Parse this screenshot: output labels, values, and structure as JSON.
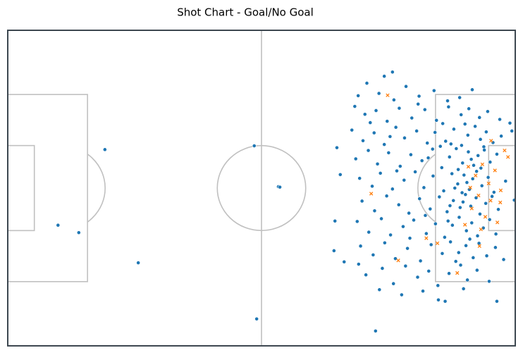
{
  "chart_data": {
    "type": "scatter",
    "title": "Shot Chart - Goal/No Goal",
    "xlim": [
      0,
      105
    ],
    "ylim": [
      68,
      0
    ],
    "series": [
      {
        "color": "#1f77b4",
        "marker": "circle",
        "x": [
          20.1,
          10.4,
          14.7,
          27.0,
          51.0,
          51.5,
          56.0,
          56.3,
          68.1,
          68.8,
          67.7,
          67.5,
          69.6,
          76.1,
          101.2,
          89.1,
          79.6,
          77.9,
          104.8,
          104.3,
          74.3,
          76.8,
          82.4,
          85.1,
          88.2,
          93.5,
          96.1,
          79.9,
          72.5,
          91.0,
          71.8,
          73.9,
          76.2,
          78.5,
          81.0,
          83.6,
          86.3,
          88.7,
          91.2,
          93.8,
          95.4,
          97.6,
          99.3,
          101.8,
          103.9,
          90.0,
          84.9,
          75.0,
          71.2,
          73.5,
          75.8,
          77.9,
          80.3,
          82.1,
          84.6,
          86.8,
          88.4,
          90.6,
          92.3,
          93.9,
          95.2,
          96.7,
          97.8,
          99.0,
          100.4,
          102.1,
          94.6,
          89.5,
          79.1,
          98.5,
          91.7,
          72.0,
          74.6,
          76.5,
          78.8,
          81.2,
          83.4,
          85.7,
          87.9,
          89.8,
          91.4,
          92.8,
          94.1,
          95.3,
          96.4,
          97.3,
          98.6,
          99.8,
          101.2,
          93.2,
          95.9,
          97.9,
          87.0,
          72.8,
          75.4,
          77.1,
          79.6,
          82.0,
          84.3,
          86.1,
          88.0,
          90.2,
          91.9,
          93.1,
          94.4,
          95.5,
          96.2,
          97.0,
          98.1,
          99.4,
          100.6,
          94.0,
          95.0,
          92.5,
          80.5,
          103.0,
          73.3,
          75.9,
          78.4,
          80.9,
          83.0,
          85.2,
          87.4,
          89.3,
          90.9,
          92.2,
          93.6,
          94.7,
          95.8,
          96.9,
          97.7,
          98.9,
          100.2,
          101.5,
          94.2,
          91.5,
          86.4,
          72.3,
          74.7,
          77.3,
          79.2,
          81.8,
          84.0,
          86.6,
          88.5,
          90.4,
          92.0,
          93.4,
          94.9,
          96.0,
          97.2,
          98.4,
          99.7,
          101.0,
          95.6,
          83.2,
          91.1,
          73.0,
          75.6,
          78.0,
          80.2,
          82.7,
          85.4,
          87.6,
          89.9,
          91.6,
          93.3,
          94.8,
          96.3,
          97.5,
          99.1,
          100.9,
          102.6,
          92.7,
          74.1,
          77.5,
          79.8,
          82.3,
          84.8,
          87.1,
          89.0,
          91.3,
          93.7,
          95.1,
          97.1,
          99.6,
          76.9,
          81.5,
          85.9,
          90.5,
          94.3,
          72.6
        ],
        "y": [
          25.7,
          42.0,
          43.6,
          50.1,
          24.9,
          62.2,
          33.7,
          33.8,
          25.3,
          31.1,
          41.1,
          47.5,
          49.9,
          64.8,
          58.4,
          58.1,
          9.0,
          9.9,
          36.6,
          21.7,
          11.4,
          13.6,
          12.1,
          14.2,
          13.0,
          14.5,
          12.8,
          15.0,
          14.1,
          15.2,
          16.4,
          18.1,
          17.3,
          19.6,
          16.8,
          18.9,
          17.1,
          19.4,
          16.5,
          18.2,
          16.9,
          18.8,
          17.5,
          19.2,
          20.0,
          20.1,
          15.9,
          19.9,
          21.5,
          23.8,
          22.1,
          24.6,
          20.9,
          23.2,
          21.7,
          24.3,
          22.0,
          23.9,
          21.3,
          24.8,
          22.6,
          20.7,
          23.5,
          21.9,
          24.2,
          22.8,
          20.2,
          25.0,
          22.9,
          25.1,
          24.5,
          27.7,
          25.9,
          28.8,
          26.4,
          29.3,
          26.8,
          28.1,
          25.6,
          29.6,
          27.3,
          25.5,
          28.6,
          26.2,
          29.1,
          27.0,
          25.8,
          28.4,
          26.7,
          30.0,
          27.8,
          29.7,
          27.5,
          31.9,
          33.6,
          30.8,
          34.2,
          32.3,
          30.5,
          33.9,
          31.4,
          34.6,
          30.9,
          33.1,
          31.2,
          34.3,
          32.0,
          30.4,
          33.5,
          31.7,
          34.9,
          35.0,
          32.8,
          34.0,
          30.3,
          32.5,
          36.8,
          38.9,
          35.7,
          37.6,
          39.4,
          36.3,
          38.5,
          35.9,
          39.1,
          36.7,
          38.2,
          35.4,
          37.9,
          36.1,
          39.6,
          37.3,
          35.8,
          38.6,
          37.0,
          37.8,
          39.9,
          41.2,
          43.5,
          40.6,
          44.1,
          42.3,
          40.9,
          43.8,
          41.7,
          44.6,
          42.0,
          40.3,
          43.2,
          41.5,
          44.3,
          42.6,
          40.8,
          43.9,
          45.0,
          44.8,
          41.1,
          46.5,
          48.4,
          45.8,
          49.2,
          47.0,
          49.7,
          46.2,
          48.1,
          45.6,
          47.9,
          46.4,
          49.0,
          45.9,
          48.6,
          46.8,
          49.4,
          49.8,
          52.7,
          51.3,
          54.6,
          50.8,
          53.2,
          51.9,
          55.0,
          52.4,
          50.6,
          53.8,
          51.7,
          54.1,
          55.9,
          57.0,
          56.2,
          58.4,
          55.7,
          50.4
        ]
      },
      {
        "color": "#ff7f0e",
        "marker": "x",
        "x": [
          78.6,
          75.2,
          80.8,
          86.6,
          100.0,
          102.0,
          96.8,
          98.2,
          99.5,
          97.4,
          100.8,
          96.0,
          98.8,
          101.9,
          95.3,
          97.9,
          103.5,
          99.9,
          94.6,
          101.3,
          102.8,
          88.9,
          93.0,
          97.6,
          95.7
        ],
        "y": [
          14.0,
          35.2,
          49.6,
          44.8,
          23.8,
          34.5,
          31.3,
          28.9,
          33.0,
          35.6,
          30.2,
          38.4,
          40.2,
          37.1,
          29.4,
          42.9,
          27.3,
          36.7,
          41.9,
          41.4,
          25.9,
          45.9,
          52.3,
          46.5,
          33.9
        ]
      }
    ]
  }
}
